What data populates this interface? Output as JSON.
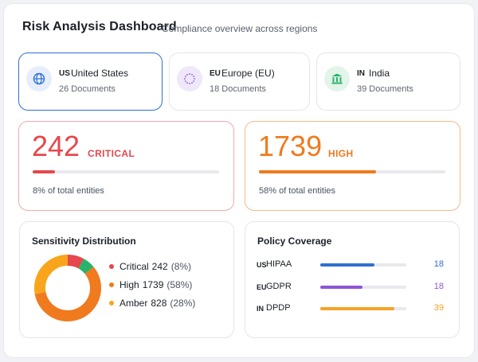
{
  "header": {
    "title": "Risk Analysis Dashboard",
    "subtitle": "Compliance overview across regions"
  },
  "regions": [
    {
      "code": "US",
      "name": "United States",
      "docs": "26 Documents",
      "icon": "globe-icon",
      "selected": true
    },
    {
      "code": "EU",
      "name": "Europe (EU)",
      "docs": "18 Documents",
      "icon": "eu-stars-icon",
      "selected": false
    },
    {
      "code": "IN",
      "name": "India",
      "docs": "39 Documents",
      "icon": "government-building-icon",
      "selected": false
    }
  ],
  "metrics": [
    {
      "value": "242",
      "level": "CRITICAL",
      "percent_text": "8% of total entities",
      "progress": 0.12,
      "color": "#e5484d",
      "border": "#f0a9ab"
    },
    {
      "value": "1739",
      "level": "HIGH",
      "percent_text": "58% of total entities",
      "progress": 0.63,
      "color": "#f07a1e",
      "border": "#f6b989"
    }
  ],
  "sensitivity": {
    "title": "Sensitivity Distribution",
    "items": [
      {
        "label": "Critical",
        "value": "242",
        "share": "(8%)",
        "color": "#e5484d",
        "fraction": 0.08
      },
      {
        "label": "High",
        "value": "1739",
        "share": "(58%)",
        "color": "#f07a1e",
        "fraction": 0.58
      },
      {
        "label": "Amber",
        "value": "828",
        "share": "(28%)",
        "color": "#f9a51c",
        "fraction": 0.28
      }
    ],
    "extra_segment_color": "#27b36b"
  },
  "policy": {
    "title": "Policy Coverage",
    "items": [
      {
        "code": "US",
        "name": "HIPAA",
        "count": "18",
        "progress": 0.63,
        "color": "#2f6fd1"
      },
      {
        "code": "EU",
        "name": "GDPR",
        "count": "18",
        "progress": 0.49,
        "color": "#8b55d9"
      },
      {
        "code": "IN",
        "name": "DPDP",
        "count": "39",
        "progress": 0.86,
        "color": "#f7a325"
      }
    ]
  }
}
